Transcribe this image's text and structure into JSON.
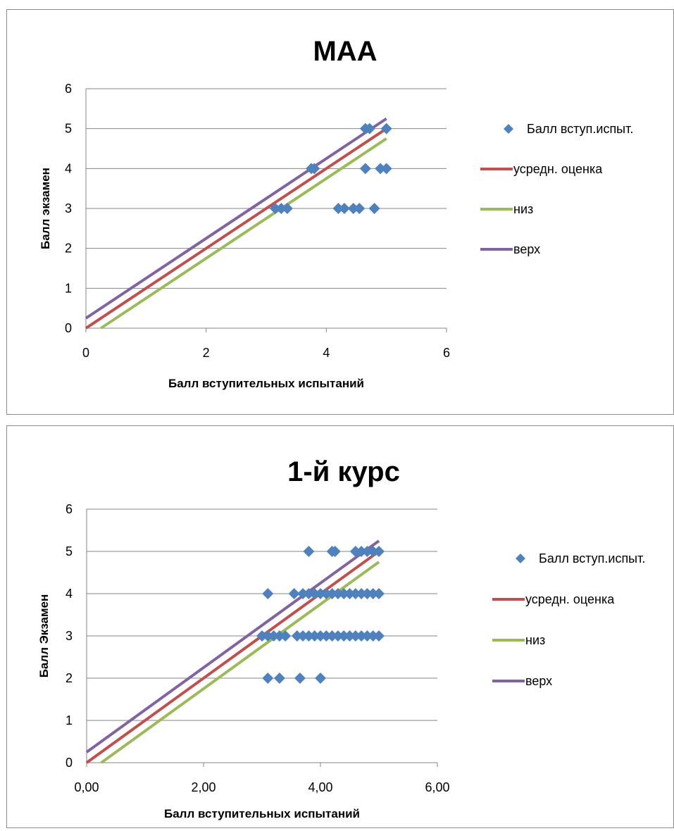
{
  "chart_data": [
    {
      "type": "scatter",
      "title": "МАА",
      "xlabel": "Балл вступительных испытаний",
      "ylabel": "Балл экзамен",
      "xlim": [
        0,
        6
      ],
      "ylim": [
        0,
        6
      ],
      "x_ticks": [
        "0",
        "2",
        "4",
        "6"
      ],
      "x_tick_values": [
        0,
        2,
        4,
        6
      ],
      "y_ticks": [
        "0",
        "1",
        "2",
        "3",
        "4",
        "5",
        "6"
      ],
      "y_tick_values": [
        0,
        1,
        2,
        3,
        4,
        5,
        6
      ],
      "grid": "horizontal",
      "legend_position": "right",
      "series": [
        {
          "name": "Балл вступ.испыт.",
          "kind": "points",
          "color": "#4F81BD",
          "points": [
            [
              3.15,
              3
            ],
            [
              3.25,
              3
            ],
            [
              3.35,
              3
            ],
            [
              3.75,
              4
            ],
            [
              3.8,
              4
            ],
            [
              4.2,
              3
            ],
            [
              4.3,
              3
            ],
            [
              4.45,
              3
            ],
            [
              4.55,
              3
            ],
            [
              4.8,
              3
            ],
            [
              4.65,
              4
            ],
            [
              4.9,
              4
            ],
            [
              5.0,
              4
            ],
            [
              4.65,
              5
            ],
            [
              4.72,
              5
            ],
            [
              5.0,
              5
            ]
          ]
        },
        {
          "name": "усредн. оценка",
          "kind": "line",
          "color": "#C0504D",
          "points": [
            [
              0,
              0
            ],
            [
              5,
              5
            ]
          ]
        },
        {
          "name": "низ",
          "kind": "line",
          "color": "#9BBB59",
          "points": [
            [
              0.25,
              0
            ],
            [
              5,
              4.75
            ]
          ]
        },
        {
          "name": "верх",
          "kind": "line",
          "color": "#8064A2",
          "points": [
            [
              0,
              0.25
            ],
            [
              5,
              5.25
            ]
          ]
        }
      ]
    },
    {
      "type": "scatter",
      "title": "1-й курс",
      "xlabel": "Балл  вступительных испытаний",
      "ylabel": "Балл Экзамен",
      "xlim": [
        0,
        6
      ],
      "ylim": [
        0,
        6
      ],
      "x_ticks": [
        "0,00",
        "2,00",
        "4,00",
        "6,00"
      ],
      "x_tick_values": [
        0,
        2,
        4,
        6
      ],
      "y_ticks": [
        "0",
        "1",
        "2",
        "3",
        "4",
        "5",
        "6"
      ],
      "y_tick_values": [
        0,
        1,
        2,
        3,
        4,
        5,
        6
      ],
      "grid": "horizontal",
      "legend_position": "right",
      "series": [
        {
          "name": "Балл вступ.испыт.",
          "kind": "points",
          "color": "#4F81BD",
          "points": [
            [
              3.1,
              2
            ],
            [
              3.3,
              2
            ],
            [
              3.65,
              2
            ],
            [
              4.0,
              2
            ],
            [
              3.0,
              3
            ],
            [
              3.1,
              3
            ],
            [
              3.2,
              3
            ],
            [
              3.3,
              3
            ],
            [
              3.4,
              3
            ],
            [
              3.6,
              3
            ],
            [
              3.7,
              3
            ],
            [
              3.8,
              3
            ],
            [
              3.9,
              3
            ],
            [
              4.0,
              3
            ],
            [
              4.1,
              3
            ],
            [
              4.2,
              3
            ],
            [
              4.3,
              3
            ],
            [
              4.4,
              3
            ],
            [
              4.5,
              3
            ],
            [
              4.6,
              3
            ],
            [
              4.7,
              3
            ],
            [
              4.8,
              3
            ],
            [
              4.9,
              3
            ],
            [
              5.0,
              3
            ],
            [
              3.1,
              4
            ],
            [
              3.55,
              4
            ],
            [
              3.7,
              4
            ],
            [
              3.8,
              4
            ],
            [
              3.9,
              4
            ],
            [
              4.0,
              4
            ],
            [
              4.1,
              4
            ],
            [
              4.2,
              4
            ],
            [
              4.3,
              4
            ],
            [
              4.4,
              4
            ],
            [
              4.5,
              4
            ],
            [
              4.6,
              4
            ],
            [
              4.7,
              4
            ],
            [
              4.8,
              4
            ],
            [
              4.9,
              4
            ],
            [
              5.0,
              4
            ],
            [
              3.8,
              5
            ],
            [
              4.2,
              5
            ],
            [
              4.25,
              5
            ],
            [
              4.6,
              5
            ],
            [
              4.7,
              5
            ],
            [
              4.8,
              5
            ],
            [
              4.9,
              5
            ],
            [
              5.0,
              5
            ]
          ]
        },
        {
          "name": "усредн. оценка",
          "kind": "line",
          "color": "#C0504D",
          "points": [
            [
              0,
              0
            ],
            [
              5,
              5
            ]
          ]
        },
        {
          "name": "низ",
          "kind": "line",
          "color": "#9BBB59",
          "points": [
            [
              0.25,
              0
            ],
            [
              5,
              4.75
            ]
          ]
        },
        {
          "name": "верх",
          "kind": "line",
          "color": "#8064A2",
          "points": [
            [
              0,
              0.25
            ],
            [
              5,
              5.25
            ]
          ]
        }
      ]
    }
  ]
}
